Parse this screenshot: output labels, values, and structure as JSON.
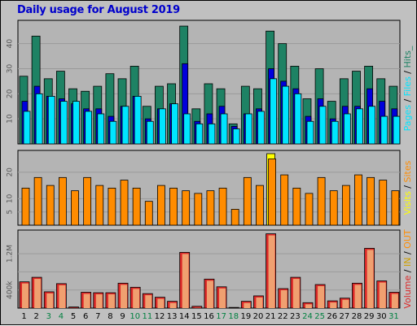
{
  "title": "Daily usage for August 2019",
  "colors": {
    "background": "#c0c0c0",
    "plot_bg": "#b4b4b4",
    "pages": "#1e8264",
    "files": "#0000dc",
    "hits": "#00e5ff",
    "visits": "#ffff00",
    "sites": "#ff8c00",
    "kbytes": "#dc2828",
    "kbytes_light": "#f0a070",
    "weekday_text": "#000000",
    "weekend_text": "#008040"
  },
  "chart_data": [
    {
      "type": "bar",
      "name": "pages-files-hits",
      "right_label": [
        "Pages",
        " / ",
        "Files",
        " / ",
        "Hits",
        "_"
      ],
      "categories": [
        "1",
        "2",
        "3",
        "4",
        "5",
        "6",
        "7",
        "8",
        "9",
        "10",
        "11",
        "12",
        "13",
        "14",
        "15",
        "16",
        "17",
        "18",
        "19",
        "20",
        "21",
        "22",
        "23",
        "24",
        "25",
        "26",
        "27",
        "28",
        "29",
        "30",
        "31"
      ],
      "weekend": [
        false,
        false,
        true,
        true,
        false,
        false,
        false,
        false,
        false,
        true,
        true,
        false,
        false,
        false,
        false,
        false,
        true,
        true,
        false,
        false,
        false,
        false,
        false,
        true,
        true,
        false,
        false,
        false,
        false,
        false,
        true
      ],
      "series": [
        {
          "name": "Pages",
          "values": [
            27,
            43,
            26,
            29,
            22,
            21,
            23,
            28,
            26,
            31,
            15,
            23,
            24,
            47,
            14,
            24,
            22,
            8,
            23,
            22,
            45,
            40,
            31,
            18,
            30,
            17,
            26,
            29,
            31,
            26,
            23
          ]
        },
        {
          "name": "Files",
          "values": [
            17,
            23,
            19,
            18,
            16,
            14,
            14,
            11,
            15,
            19,
            10,
            14,
            16,
            32,
            9,
            12,
            15,
            7,
            12,
            14,
            30,
            25,
            22,
            11,
            18,
            10,
            15,
            15,
            22,
            17,
            14
          ]
        },
        {
          "name": "Hits",
          "values": [
            13,
            20,
            19,
            17,
            17,
            13,
            12,
            9,
            15,
            19,
            9,
            14,
            16,
            12,
            8,
            8,
            12,
            6,
            12,
            13,
            26,
            23,
            20,
            9,
            15,
            9,
            12,
            14,
            15,
            11,
            11
          ]
        }
      ],
      "yticks": [
        10,
        20,
        30,
        40
      ],
      "ylim": [
        0,
        48
      ]
    },
    {
      "type": "bar",
      "name": "visits-sites",
      "right_label": [
        "Visits",
        " / ",
        "Sites"
      ],
      "series": [
        {
          "name": "Visits",
          "values": [
            0,
            0,
            0,
            0,
            0,
            0,
            0,
            0,
            0,
            0,
            0,
            0,
            0,
            0,
            0,
            0,
            0,
            0,
            0,
            0,
            27,
            0,
            0,
            0,
            0,
            0,
            0,
            0,
            0,
            0,
            0
          ]
        },
        {
          "name": "Sites",
          "values": [
            14,
            18,
            15,
            18,
            13,
            18,
            15,
            14,
            17,
            14,
            9,
            15,
            14,
            13,
            12,
            13,
            14,
            6,
            18,
            15,
            25,
            19,
            14,
            12,
            18,
            13,
            15,
            19,
            18,
            17,
            13
          ]
        }
      ],
      "yticks": [
        5,
        10,
        20
      ],
      "ylim": [
        0,
        27
      ]
    },
    {
      "type": "bar",
      "name": "volume",
      "right_label": [
        "Volume",
        " / ",
        "IN",
        " / ",
        "OUT"
      ],
      "series": [
        {
          "name": "Volume",
          "values": [
            580,
            680,
            360,
            540,
            25,
            350,
            340,
            340,
            550,
            460,
            320,
            240,
            150,
            1230,
            40,
            640,
            470,
            15,
            150,
            270,
            1640,
            430,
            680,
            120,
            520,
            160,
            220,
            550,
            1320,
            600,
            350
          ]
        }
      ],
      "yticks": [
        400,
        800,
        1200
      ],
      "ytick_labels": [
        "400k",
        "",
        "1.2M"
      ],
      "ylim": [
        0,
        1650
      ]
    }
  ]
}
